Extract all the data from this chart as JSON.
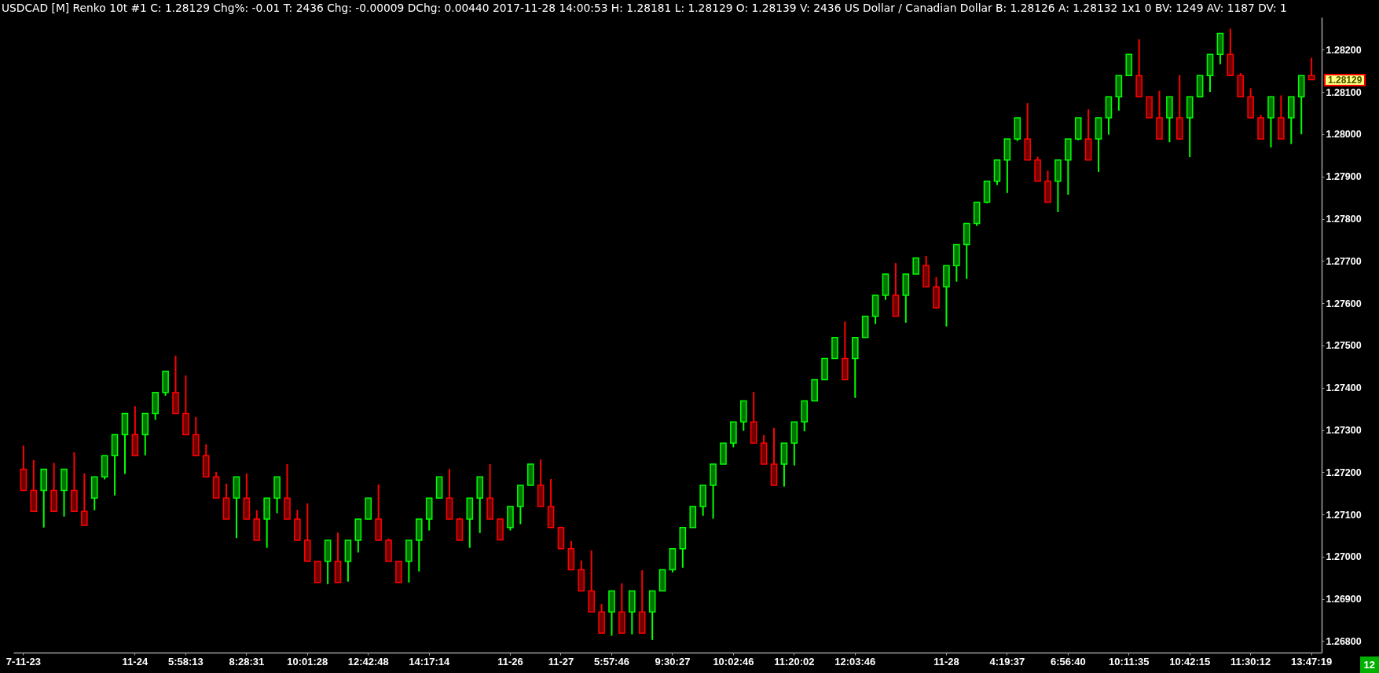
{
  "chart_data": {
    "type": "candlestick",
    "title": "USDCAD [M] Renko 10t #1 C: 1.28129 Chg%: -0.01 T: 2436 Chg: -0.00009 DChg: 0.00440 2017-11-28 14:00:53 H: 1.28181 L: 1.28129 O: 1.28139 V: 2436 US Dollar / Canadian Dollar B: 1.28126 A: 1.28132 1x1 0 BV: 1249 AV: 1187 DV: 1",
    "categories": [
      "7-11-23",
      null,
      null,
      null,
      null,
      null,
      null,
      null,
      null,
      null,
      null,
      "11-24",
      null,
      null,
      null,
      null,
      "5:58:13",
      null,
      null,
      null,
      null,
      null,
      "8:28:31",
      null,
      null,
      null,
      null,
      null,
      "10:01:28",
      null,
      null,
      null,
      null,
      null,
      "12:42:48",
      null,
      null,
      null,
      null,
      null,
      "14:17:14",
      null,
      null,
      null,
      null,
      null,
      null,
      null,
      "11-26",
      null,
      null,
      null,
      null,
      "11-27",
      null,
      null,
      null,
      null,
      "5:57:46",
      null,
      null,
      null,
      null,
      null,
      "9:30:27",
      null,
      null,
      null,
      null,
      null,
      "10:02:46",
      null,
      null,
      null,
      null,
      null,
      "11:20:02",
      null,
      null,
      null,
      null,
      null,
      "12:03:46",
      null,
      null,
      null,
      null,
      null,
      null,
      null,
      null,
      "11-28",
      null,
      null,
      null,
      null,
      null,
      "4:19:37",
      null,
      null,
      null,
      null,
      null,
      "6:56:40",
      null,
      null,
      null,
      null,
      null,
      "10:11:35",
      null,
      null,
      null,
      null,
      null,
      "10:42:15",
      null,
      null,
      null,
      null,
      null,
      "11:30:12",
      null,
      null,
      null,
      null,
      null,
      "13:47:19"
    ],
    "ohlc": [
      [
        1.27207,
        1.27263,
        1.27157,
        1.27157
      ],
      [
        1.27157,
        1.27229,
        1.27107,
        1.27107
      ],
      [
        1.27157,
        1.27207,
        1.27069,
        1.27207
      ],
      [
        1.27157,
        1.27222,
        1.27107,
        1.27107
      ],
      [
        1.27157,
        1.27207,
        1.27095,
        1.27207
      ],
      [
        1.27157,
        1.27247,
        1.27107,
        1.27107
      ],
      [
        1.27107,
        1.27197,
        1.27074,
        1.27074
      ],
      [
        1.27139,
        1.27189,
        1.2711,
        1.27189
      ],
      [
        1.27189,
        1.27239,
        1.27183,
        1.27239
      ],
      [
        1.27239,
        1.27289,
        1.27145,
        1.27289
      ],
      [
        1.27289,
        1.27339,
        1.27196,
        1.27339
      ],
      [
        1.27289,
        1.27356,
        1.27239,
        1.27239
      ],
      [
        1.27289,
        1.27339,
        1.2724,
        1.27339
      ],
      [
        1.27339,
        1.27389,
        1.27324,
        1.27389
      ],
      [
        1.27389,
        1.27439,
        1.27381,
        1.27439
      ],
      [
        1.27389,
        1.27476,
        1.27339,
        1.27339
      ],
      [
        1.27339,
        1.27429,
        1.27289,
        1.27289
      ],
      [
        1.27289,
        1.27331,
        1.27239,
        1.27239
      ],
      [
        1.27239,
        1.27266,
        1.27189,
        1.27189
      ],
      [
        1.27189,
        1.27201,
        1.27139,
        1.27139
      ],
      [
        1.27139,
        1.27173,
        1.27089,
        1.27089
      ],
      [
        1.27139,
        1.27189,
        1.27044,
        1.27189
      ],
      [
        1.27139,
        1.27197,
        1.27089,
        1.27089
      ],
      [
        1.27089,
        1.2711,
        1.27039,
        1.27039
      ],
      [
        1.27089,
        1.27139,
        1.27021,
        1.27139
      ],
      [
        1.27139,
        1.27189,
        1.27103,
        1.27189
      ],
      [
        1.27139,
        1.27219,
        1.27089,
        1.27089
      ],
      [
        1.27089,
        1.27111,
        1.27039,
        1.27039
      ],
      [
        1.27039,
        1.27126,
        1.26989,
        1.26989
      ],
      [
        1.26989,
        1.26989,
        1.26939,
        1.26939
      ],
      [
        1.26989,
        1.27039,
        1.26935,
        1.27039
      ],
      [
        1.26989,
        1.27057,
        1.26939,
        1.26939
      ],
      [
        1.26989,
        1.27039,
        1.26941,
        1.27039
      ],
      [
        1.27039,
        1.27089,
        1.2701,
        1.27089
      ],
      [
        1.27089,
        1.27139,
        1.27089,
        1.27139
      ],
      [
        1.27089,
        1.27171,
        1.27039,
        1.27039
      ],
      [
        1.27039,
        1.27043,
        1.26989,
        1.26989
      ],
      [
        1.26989,
        1.26989,
        1.26939,
        1.26939
      ],
      [
        1.26989,
        1.27039,
        1.26939,
        1.27039
      ],
      [
        1.27039,
        1.27089,
        1.26965,
        1.27089
      ],
      [
        1.27089,
        1.27139,
        1.27062,
        1.27139
      ],
      [
        1.27139,
        1.27189,
        1.27139,
        1.27189
      ],
      [
        1.27139,
        1.27208,
        1.27089,
        1.27089
      ],
      [
        1.27089,
        1.27092,
        1.27039,
        1.27039
      ],
      [
        1.27089,
        1.27139,
        1.27021,
        1.27139
      ],
      [
        1.27139,
        1.27189,
        1.27056,
        1.27189
      ],
      [
        1.27139,
        1.27219,
        1.27089,
        1.27089
      ],
      [
        1.27089,
        1.27089,
        1.2704,
        1.2704
      ],
      [
        1.27069,
        1.27119,
        1.27062,
        1.27119
      ],
      [
        1.27119,
        1.27169,
        1.27077,
        1.27169
      ],
      [
        1.27169,
        1.27219,
        1.27169,
        1.27219
      ],
      [
        1.27169,
        1.2723,
        1.27119,
        1.27119
      ],
      [
        1.27119,
        1.27184,
        1.27069,
        1.27069
      ],
      [
        1.27069,
        1.27071,
        1.27019,
        1.27019
      ],
      [
        1.27019,
        1.27037,
        1.26969,
        1.26969
      ],
      [
        1.26969,
        1.26991,
        1.26919,
        1.26919
      ],
      [
        1.26919,
        1.27015,
        1.26869,
        1.26869
      ],
      [
        1.26869,
        1.26888,
        1.26819,
        1.26819
      ],
      [
        1.26869,
        1.26919,
        1.26813,
        1.26919
      ],
      [
        1.26869,
        1.26937,
        1.26819,
        1.26819
      ],
      [
        1.26869,
        1.26919,
        1.26816,
        1.26919
      ],
      [
        1.26869,
        1.26968,
        1.26819,
        1.26819
      ],
      [
        1.26869,
        1.26919,
        1.26803,
        1.26919
      ],
      [
        1.26919,
        1.26969,
        1.26919,
        1.26969
      ],
      [
        1.26969,
        1.27019,
        1.26963,
        1.27019
      ],
      [
        1.27019,
        1.27069,
        1.26974,
        1.27069
      ],
      [
        1.27069,
        1.27119,
        1.27069,
        1.27119
      ],
      [
        1.27119,
        1.27169,
        1.27097,
        1.27169
      ],
      [
        1.27169,
        1.27219,
        1.2709,
        1.27219
      ],
      [
        1.27219,
        1.27269,
        1.27219,
        1.27269
      ],
      [
        1.27269,
        1.27319,
        1.27259,
        1.27319
      ],
      [
        1.27319,
        1.27369,
        1.27298,
        1.27369
      ],
      [
        1.27319,
        1.2739,
        1.27269,
        1.27269
      ],
      [
        1.27269,
        1.27288,
        1.27219,
        1.27219
      ],
      [
        1.27219,
        1.27305,
        1.27169,
        1.27169
      ],
      [
        1.27219,
        1.27269,
        1.27166,
        1.27269
      ],
      [
        1.27269,
        1.27319,
        1.27216,
        1.27319
      ],
      [
        1.27319,
        1.27369,
        1.27297,
        1.27369
      ],
      [
        1.27369,
        1.27419,
        1.27369,
        1.27419
      ],
      [
        1.27419,
        1.27469,
        1.27419,
        1.27469
      ],
      [
        1.27469,
        1.27519,
        1.27469,
        1.27519
      ],
      [
        1.27469,
        1.27557,
        1.27419,
        1.27419
      ],
      [
        1.27469,
        1.27519,
        1.27376,
        1.27519
      ],
      [
        1.27519,
        1.27569,
        1.27519,
        1.27569
      ],
      [
        1.27569,
        1.27619,
        1.27551,
        1.27619
      ],
      [
        1.27619,
        1.27669,
        1.27608,
        1.27669
      ],
      [
        1.27619,
        1.27695,
        1.27569,
        1.27569
      ],
      [
        1.27619,
        1.27669,
        1.27554,
        1.27669
      ],
      [
        1.27669,
        1.27707,
        1.27669,
        1.27707
      ],
      [
        1.27689,
        1.27712,
        1.27639,
        1.27639
      ],
      [
        1.27639,
        1.27662,
        1.27589,
        1.27589
      ],
      [
        1.27639,
        1.27689,
        1.27545,
        1.27689
      ],
      [
        1.27689,
        1.27739,
        1.27651,
        1.27739
      ],
      [
        1.27739,
        1.27789,
        1.27658,
        1.27789
      ],
      [
        1.27789,
        1.27839,
        1.27783,
        1.27839
      ],
      [
        1.27839,
        1.27889,
        1.27837,
        1.27889
      ],
      [
        1.27889,
        1.27939,
        1.2788,
        1.27939
      ],
      [
        1.27939,
        1.27989,
        1.27861,
        1.27989
      ],
      [
        1.27989,
        1.28039,
        1.27984,
        1.28039
      ],
      [
        1.27989,
        1.28074,
        1.27939,
        1.27939
      ],
      [
        1.27939,
        1.27947,
        1.27889,
        1.27889
      ],
      [
        1.27889,
        1.27914,
        1.27839,
        1.27839
      ],
      [
        1.27889,
        1.27939,
        1.27816,
        1.27939
      ],
      [
        1.27939,
        1.27989,
        1.27857,
        1.27989
      ],
      [
        1.27989,
        1.28039,
        1.27986,
        1.28039
      ],
      [
        1.27989,
        1.28059,
        1.27939,
        1.27939
      ],
      [
        1.27989,
        1.28039,
        1.27911,
        1.28039
      ],
      [
        1.28039,
        1.28089,
        1.27999,
        1.28089
      ],
      [
        1.28089,
        1.28139,
        1.28056,
        1.28139
      ],
      [
        1.28139,
        1.28189,
        1.28139,
        1.28189
      ],
      [
        1.28139,
        1.28225,
        1.28089,
        1.28089
      ],
      [
        1.28089,
        1.28089,
        1.28039,
        1.28039
      ],
      [
        1.28039,
        1.28103,
        1.27989,
        1.27989
      ],
      [
        1.28039,
        1.28089,
        1.27981,
        1.28089
      ],
      [
        1.28039,
        1.2814,
        1.27989,
        1.27989
      ],
      [
        1.28039,
        1.28089,
        1.27946,
        1.28089
      ],
      [
        1.28089,
        1.28139,
        1.28089,
        1.28139
      ],
      [
        1.28139,
        1.28189,
        1.281,
        1.28189
      ],
      [
        1.28189,
        1.28239,
        1.28166,
        1.28239
      ],
      [
        1.28189,
        1.2825,
        1.28139,
        1.28139
      ],
      [
        1.28139,
        1.28145,
        1.28089,
        1.28089
      ],
      [
        1.28089,
        1.28109,
        1.28039,
        1.28039
      ],
      [
        1.28039,
        1.28046,
        1.27989,
        1.27989
      ],
      [
        1.28039,
        1.28089,
        1.27969,
        1.28089
      ],
      [
        1.28039,
        1.28092,
        1.27989,
        1.27989
      ],
      [
        1.28039,
        1.28089,
        1.27977,
        1.28089
      ],
      [
        1.28089,
        1.28139,
        1.28,
        1.28139
      ],
      [
        1.28139,
        1.28181,
        1.28129,
        1.28129
      ]
    ],
    "colors": [
      "#ff0000",
      "#ff0000",
      "#00ff00",
      "#ff0000",
      "#00ff00",
      "#ff0000",
      "#ff0000",
      "#00ff00",
      "#00ff00",
      "#00ff00",
      "#00ff00",
      "#ff0000",
      "#00ff00",
      "#00ff00",
      "#00ff00",
      "#ff0000",
      "#ff0000",
      "#ff0000",
      "#ff0000",
      "#ff0000",
      "#ff0000",
      "#00ff00",
      "#ff0000",
      "#ff0000",
      "#00ff00",
      "#00ff00",
      "#ff0000",
      "#ff0000",
      "#ff0000",
      "#ff0000",
      "#00ff00",
      "#ff0000",
      "#00ff00",
      "#00ff00",
      "#00ff00",
      "#ff0000",
      "#ff0000",
      "#ff0000",
      "#00ff00",
      "#00ff00",
      "#00ff00",
      "#00ff00",
      "#ff0000",
      "#ff0000",
      "#00ff00",
      "#00ff00",
      "#ff0000",
      "#ff0000",
      "#00ff00",
      "#00ff00",
      "#00ff00",
      "#ff0000",
      "#ff0000",
      "#ff0000",
      "#ff0000",
      "#ff0000",
      "#ff0000",
      "#ff0000",
      "#00ff00",
      "#ff0000",
      "#00ff00",
      "#ff0000",
      "#00ff00",
      "#00ff00",
      "#00ff00",
      "#00ff00",
      "#00ff00",
      "#00ff00",
      "#00ff00",
      "#00ff00",
      "#00ff00",
      "#00ff00",
      "#ff0000",
      "#ff0000",
      "#ff0000",
      "#00ff00",
      "#00ff00",
      "#00ff00",
      "#00ff00",
      "#00ff00",
      "#00ff00",
      "#ff0000",
      "#00ff00",
      "#00ff00",
      "#00ff00",
      "#00ff00",
      "#ff0000",
      "#00ff00",
      "#00ff00",
      "#ff0000",
      "#ff0000",
      "#00ff00",
      "#00ff00",
      "#00ff00",
      "#00ff00",
      "#00ff00",
      "#00ff00",
      "#00ff00",
      "#00ff00",
      "#ff0000",
      "#ff0000",
      "#ff0000",
      "#00ff00",
      "#00ff00",
      "#00ff00",
      "#ff0000",
      "#00ff00",
      "#00ff00",
      "#00ff00",
      "#00ff00",
      "#ff0000",
      "#ff0000",
      "#ff0000",
      "#00ff00",
      "#ff0000",
      "#00ff00",
      "#00ff00",
      "#00ff00",
      "#00ff00",
      "#ff0000",
      "#ff0000",
      "#ff0000",
      "#ff0000",
      "#00ff00",
      "#ff0000",
      "#00ff00",
      "#00ff00",
      "#ff0000"
    ],
    "ylim": [
      1.26773,
      1.28277
    ],
    "yticks": [
      {
        "value": 1.268,
        "label": "1.26800"
      },
      {
        "value": 1.269,
        "label": "1.26900"
      },
      {
        "value": 1.27,
        "label": "1.27000"
      },
      {
        "value": 1.271,
        "label": "1.27100"
      },
      {
        "value": 1.272,
        "label": "1.27200"
      },
      {
        "value": 1.273,
        "label": "1.27300"
      },
      {
        "value": 1.274,
        "label": "1.27400"
      },
      {
        "value": 1.275,
        "label": "1.27500"
      },
      {
        "value": 1.276,
        "label": "1.27600"
      },
      {
        "value": 1.277,
        "label": "1.27700"
      },
      {
        "value": 1.278,
        "label": "1.27800"
      },
      {
        "value": 1.279,
        "label": "1.27900"
      },
      {
        "value": 1.28,
        "label": "1.28000"
      },
      {
        "value": 1.281,
        "label": "1.28100"
      },
      {
        "value": 1.282,
        "label": "1.28200"
      }
    ],
    "annotations": [
      "1.28129",
      "12"
    ]
  }
}
